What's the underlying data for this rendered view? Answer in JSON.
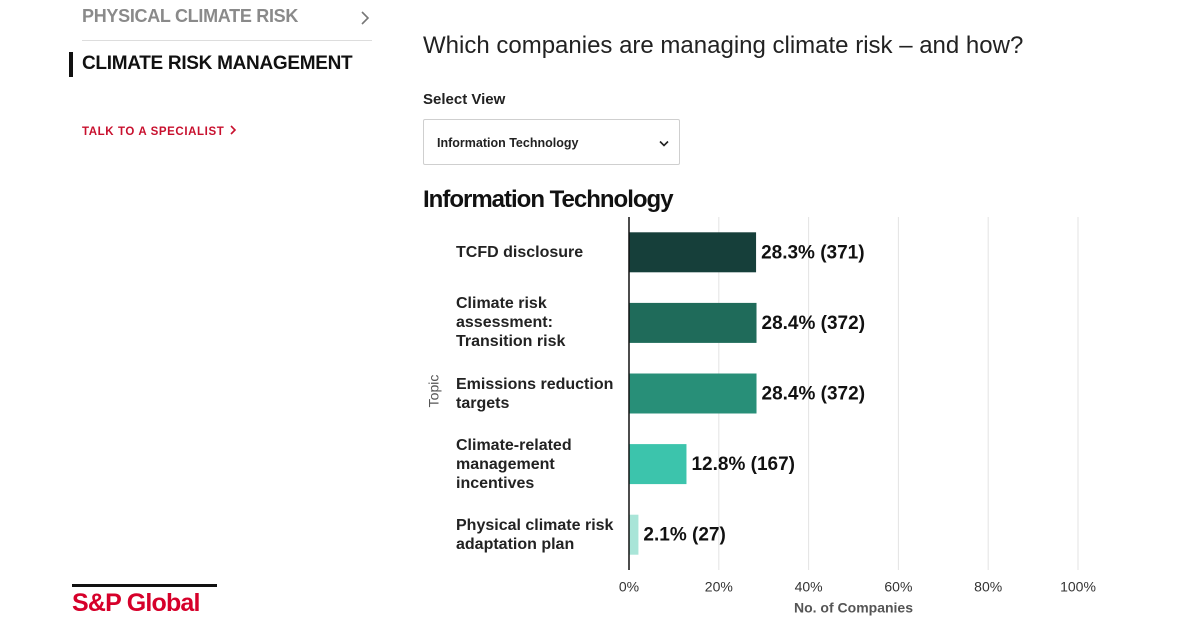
{
  "nav": {
    "items": [
      "PHYSICAL CLIMATE RISK",
      "CLIMATE RISK MANAGEMENT"
    ],
    "cta": "TALK TO A SPECIALIST"
  },
  "logo": "S&P Global",
  "question": "Which companies are managing climate risk – and how?",
  "select": {
    "label": "Select View",
    "value": "Information Technology"
  },
  "chart_data": {
    "type": "bar",
    "orientation": "horizontal",
    "title": "Information Technology",
    "x_label": "No. of Companies",
    "y_label": "Topic",
    "categories": [
      "TCFD disclosure",
      "Climate risk assessment: Transition risk",
      "Emissions reduction targets",
      "Climate-related management incentives",
      "Physical climate risk adaptation plan"
    ],
    "values": [
      28.3,
      28.4,
      28.4,
      12.8,
      2.1
    ],
    "value_labels": [
      "28.3% (371)",
      "28.4% (372)",
      "28.4% (372)",
      "12.8% (167)",
      "2.1% (27)"
    ],
    "colors": [
      "#163f3a",
      "#1f6b5a",
      "#288f78",
      "#3cc4ac",
      "#a9e5d8"
    ],
    "xlim": [
      0,
      100
    ],
    "xticks": [
      {
        "value": 0,
        "label": "0%"
      },
      {
        "value": 20,
        "label": "20%"
      },
      {
        "value": 40,
        "label": "40%"
      },
      {
        "value": 60,
        "label": "60%"
      },
      {
        "value": 80,
        "label": "80%"
      },
      {
        "value": 100,
        "label": "100%"
      }
    ],
    "grid": true
  }
}
